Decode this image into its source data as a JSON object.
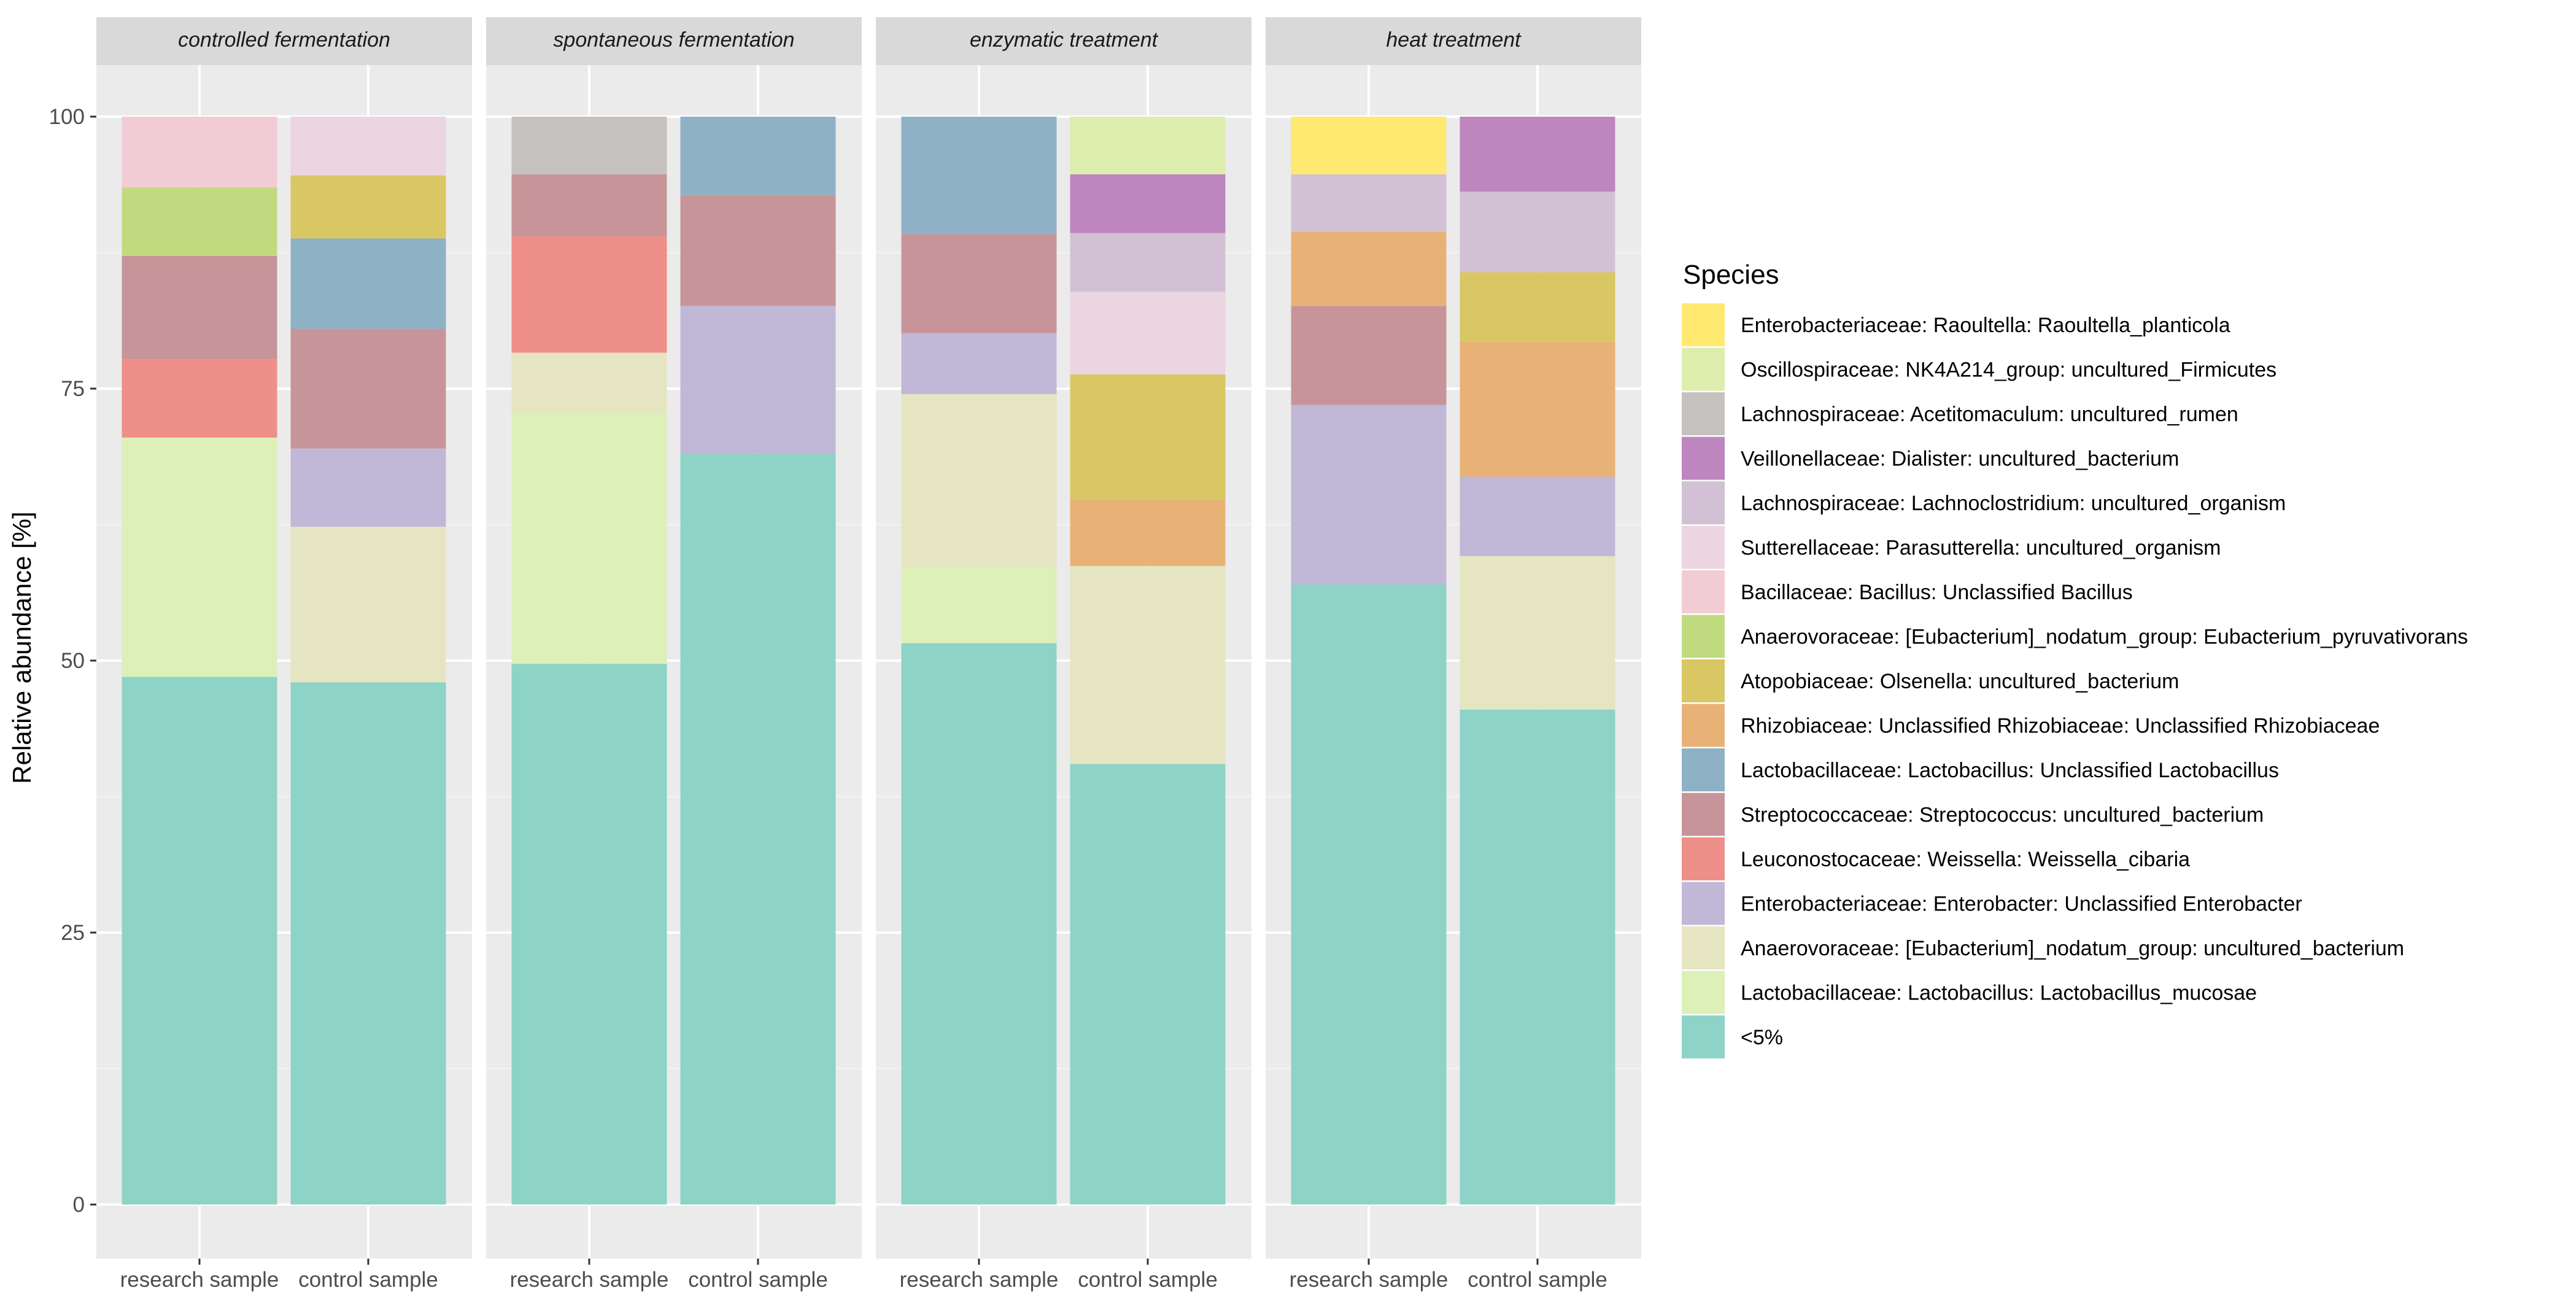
{
  "chart_data": {
    "type": "bar",
    "subtype": "stacked-faceted",
    "ylabel": "Relative abundance [%]",
    "xlabel": "",
    "ylim": [
      0,
      100
    ],
    "yticks": [
      0,
      25,
      50,
      75,
      100
    ],
    "grid": true,
    "legend_title": "Species",
    "legend_position": "right",
    "species": [
      {
        "name": "<5%",
        "color": "#8DD3C7"
      },
      {
        "name": "Lactobacillaceae: Lactobacillus: Lactobacillus_mucosae",
        "color": "#DCF0B8"
      },
      {
        "name": "Anaerovoraceae: [Eubacterium]_nodatum_group: uncultured_bacterium",
        "color": "#E5E5C1"
      },
      {
        "name": "Enterobacteriaceae: Enterobacter: Unclassified Enterobacter",
        "color": "#C1B8D7"
      },
      {
        "name": "Leuconostocaceae: Weissella: Weissella_cibaria",
        "color": "#EE8F8A"
      },
      {
        "name": "Streptococcaceae: Streptococcus: uncultured_bacterium",
        "color": "#C79599"
      },
      {
        "name": "Lactobacillaceae: Lactobacillus: Unclassified Lactobacillus",
        "color": "#8FB1C6"
      },
      {
        "name": "Rhizobiaceae: Unclassified Rhizobiaceae: Unclassified Rhizobiaceae",
        "color": "#E8B277"
      },
      {
        "name": "Atopobiaceae: Olsenella: uncultured_bacterium",
        "color": "#D9C763"
      },
      {
        "name": "Anaerovoraceae: [Eubacterium]_nodatum_group: Eubacterium_pyruvativorans",
        "color": "#C0DB7F"
      },
      {
        "name": "Bacillaceae: Bacillus: Unclassified Bacillus",
        "color": "#F2CCD5"
      },
      {
        "name": "Sutterellaceae: Parasutterella: uncultured_organism",
        "color": "#EAD5E1"
      },
      {
        "name": "Lachnospiraceae: Lachnoclostridium: uncultured_organism",
        "color": "#D2C1D4"
      },
      {
        "name": "Veillonellaceae: Dialister: uncultured_bacterium",
        "color": "#BD86BF"
      },
      {
        "name": "Lachnospiraceae: Acetitomaculum: uncultured_rumen",
        "color": "#C5C1BF"
      },
      {
        "name": "Oscillospiraceae: NK4A214_group: uncultured_Firmicutes",
        "color": "#DDEDAE"
      },
      {
        "name": "Enterobacteriaceae: Raoultella: Raoultella_planticola",
        "color": "#FFE970"
      }
    ],
    "facets": [
      {
        "title": "controlled fermentation",
        "categories": [
          "research sample",
          "control sample"
        ],
        "bars": [
          [
            {
              "species": "<5%",
              "value": 48.5
            },
            {
              "species": "Lactobacillaceae: Lactobacillus: Lactobacillus_mucosae",
              "value": 22
            },
            {
              "species": "Leuconostocaceae: Weissella: Weissella_cibaria",
              "value": 7.2
            },
            {
              "species": "Streptococcaceae: Streptococcus: uncultured_bacterium",
              "value": 9.5
            },
            {
              "species": "Anaerovoraceae: [Eubacterium]_nodatum_group: Eubacterium_pyruvativorans",
              "value": 6.3
            },
            {
              "species": "Bacillaceae: Bacillus: Unclassified Bacillus",
              "value": 6.5
            }
          ],
          [
            {
              "species": "<5%",
              "value": 48
            },
            {
              "species": "Anaerovoraceae: [Eubacterium]_nodatum_group: uncultured_bacterium",
              "value": 14.3
            },
            {
              "species": "Enterobacteriaceae: Enterobacter: Unclassified Enterobacter",
              "value": 7.2
            },
            {
              "species": "Streptococcaceae: Streptococcus: uncultured_bacterium",
              "value": 11
            },
            {
              "species": "Lactobacillaceae: Lactobacillus: Unclassified Lactobacillus",
              "value": 8.3
            },
            {
              "species": "Atopobiaceae: Olsenella: uncultured_bacterium",
              "value": 5.8
            },
            {
              "species": "Sutterellaceae: Parasutterella: uncultured_organism",
              "value": 5.4
            }
          ]
        ]
      },
      {
        "title": "spontaneous fermentation",
        "categories": [
          "research sample",
          "control sample"
        ],
        "bars": [
          [
            {
              "species": "<5%",
              "value": 49.7
            },
            {
              "species": "Lactobacillaceae: Lactobacillus: Lactobacillus_mucosae",
              "value": 23
            },
            {
              "species": "Anaerovoraceae: [Eubacterium]_nodatum_group: uncultured_bacterium",
              "value": 5.6
            },
            {
              "species": "Leuconostocaceae: Weissella: Weissella_cibaria",
              "value": 10.7
            },
            {
              "species": "Streptococcaceae: Streptococcus: uncultured_bacterium",
              "value": 5.7
            },
            {
              "species": "Lachnospiraceae: Acetitomaculum: uncultured_rumen",
              "value": 5.3
            }
          ],
          [
            {
              "species": "<5%",
              "value": 69
            },
            {
              "species": "Enterobacteriaceae: Enterobacter: Unclassified Enterobacter",
              "value": 13.6
            },
            {
              "species": "Streptococcaceae: Streptococcus: uncultured_bacterium",
              "value": 10.2
            },
            {
              "species": "Lactobacillaceae: Lactobacillus: Unclassified Lactobacillus",
              "value": 7.2
            }
          ]
        ]
      },
      {
        "title": "enzymatic treatment",
        "categories": [
          "research sample",
          "control sample"
        ],
        "bars": [
          [
            {
              "species": "<5%",
              "value": 51.6
            },
            {
              "species": "Lactobacillaceae: Lactobacillus: Lactobacillus_mucosae",
              "value": 7
            },
            {
              "species": "Anaerovoraceae: [Eubacterium]_nodatum_group: uncultured_bacterium",
              "value": 15.9
            },
            {
              "species": "Enterobacteriaceae: Enterobacter: Unclassified Enterobacter",
              "value": 5.6
            },
            {
              "species": "Streptococcaceae: Streptococcus: uncultured_bacterium",
              "value": 9.1
            },
            {
              "species": "Lactobacillaceae: Lactobacillus: Unclassified Lactobacillus",
              "value": 10.8
            }
          ],
          [
            {
              "species": "<5%",
              "value": 40.5
            },
            {
              "species": "Anaerovoraceae: [Eubacterium]_nodatum_group: uncultured_bacterium",
              "value": 18.2
            },
            {
              "species": "Rhizobiaceae: Unclassified Rhizobiaceae: Unclassified Rhizobiaceae",
              "value": 6.1
            },
            {
              "species": "Atopobiaceae: Olsenella: uncultured_bacterium",
              "value": 11.5
            },
            {
              "species": "Sutterellaceae: Parasutterella: uncultured_organism",
              "value": 7.6
            },
            {
              "species": "Lachnospiraceae: Lachnoclostridium: uncultured_organism",
              "value": 5.4
            },
            {
              "species": "Veillonellaceae: Dialister: uncultured_bacterium",
              "value": 5.4
            },
            {
              "species": "Oscillospiraceae: NK4A214_group: uncultured_Firmicutes",
              "value": 5.3
            }
          ]
        ]
      },
      {
        "title": "heat treatment",
        "categories": [
          "research sample",
          "control sample"
        ],
        "bars": [
          [
            {
              "species": "<5%",
              "value": 57
            },
            {
              "species": "Enterobacteriaceae: Enterobacter: Unclassified Enterobacter",
              "value": 16.5
            },
            {
              "species": "Streptococcaceae: Streptococcus: uncultured_bacterium",
              "value": 9.1
            },
            {
              "species": "Rhizobiaceae: Unclassified Rhizobiaceae: Unclassified Rhizobiaceae",
              "value": 6.8
            },
            {
              "species": "Lachnospiraceae: Lachnoclostridium: uncultured_organism",
              "value": 5.3
            },
            {
              "species": "Enterobacteriaceae: Raoultella: Raoultella_planticola",
              "value": 5.3
            }
          ],
          [
            {
              "species": "<5%",
              "value": 45.5
            },
            {
              "species": "Anaerovoraceae: [Eubacterium]_nodatum_group: uncultured_bacterium",
              "value": 14.1
            },
            {
              "species": "Enterobacteriaceae: Enterobacter: Unclassified Enterobacter",
              "value": 7.3
            },
            {
              "species": "Rhizobiaceae: Unclassified Rhizobiaceae: Unclassified Rhizobiaceae",
              "value": 12.4
            },
            {
              "species": "Atopobiaceae: Olsenella: uncultured_bacterium",
              "value": 6.4
            },
            {
              "species": "Lachnospiraceae: Lachnoclostridium: uncultured_organism",
              "value": 7.4
            },
            {
              "species": "Veillonellaceae: Dialister: uncultured_bacterium",
              "value": 6.9
            }
          ]
        ]
      }
    ],
    "legend_order": [
      "Enterobacteriaceae: Raoultella: Raoultella_planticola",
      "Oscillospiraceae: NK4A214_group: uncultured_Firmicutes",
      "Lachnospiraceae: Acetitomaculum: uncultured_rumen",
      "Veillonellaceae: Dialister: uncultured_bacterium",
      "Lachnospiraceae: Lachnoclostridium: uncultured_organism",
      "Sutterellaceae: Parasutterella: uncultured_organism",
      "Bacillaceae: Bacillus: Unclassified Bacillus",
      "Anaerovoraceae: [Eubacterium]_nodatum_group: Eubacterium_pyruvativorans",
      "Atopobiaceae: Olsenella: uncultured_bacterium",
      "Rhizobiaceae: Unclassified Rhizobiaceae: Unclassified Rhizobiaceae",
      "Lactobacillaceae: Lactobacillus: Unclassified Lactobacillus",
      "Streptococcaceae: Streptococcus: uncultured_bacterium",
      "Leuconostocaceae: Weissella: Weissella_cibaria",
      "Enterobacteriaceae: Enterobacter: Unclassified Enterobacter",
      "Anaerovoraceae: [Eubacterium]_nodatum_group: uncultured_bacterium",
      "Lactobacillaceae: Lactobacillus: Lactobacillus_mucosae",
      "<5%"
    ]
  }
}
